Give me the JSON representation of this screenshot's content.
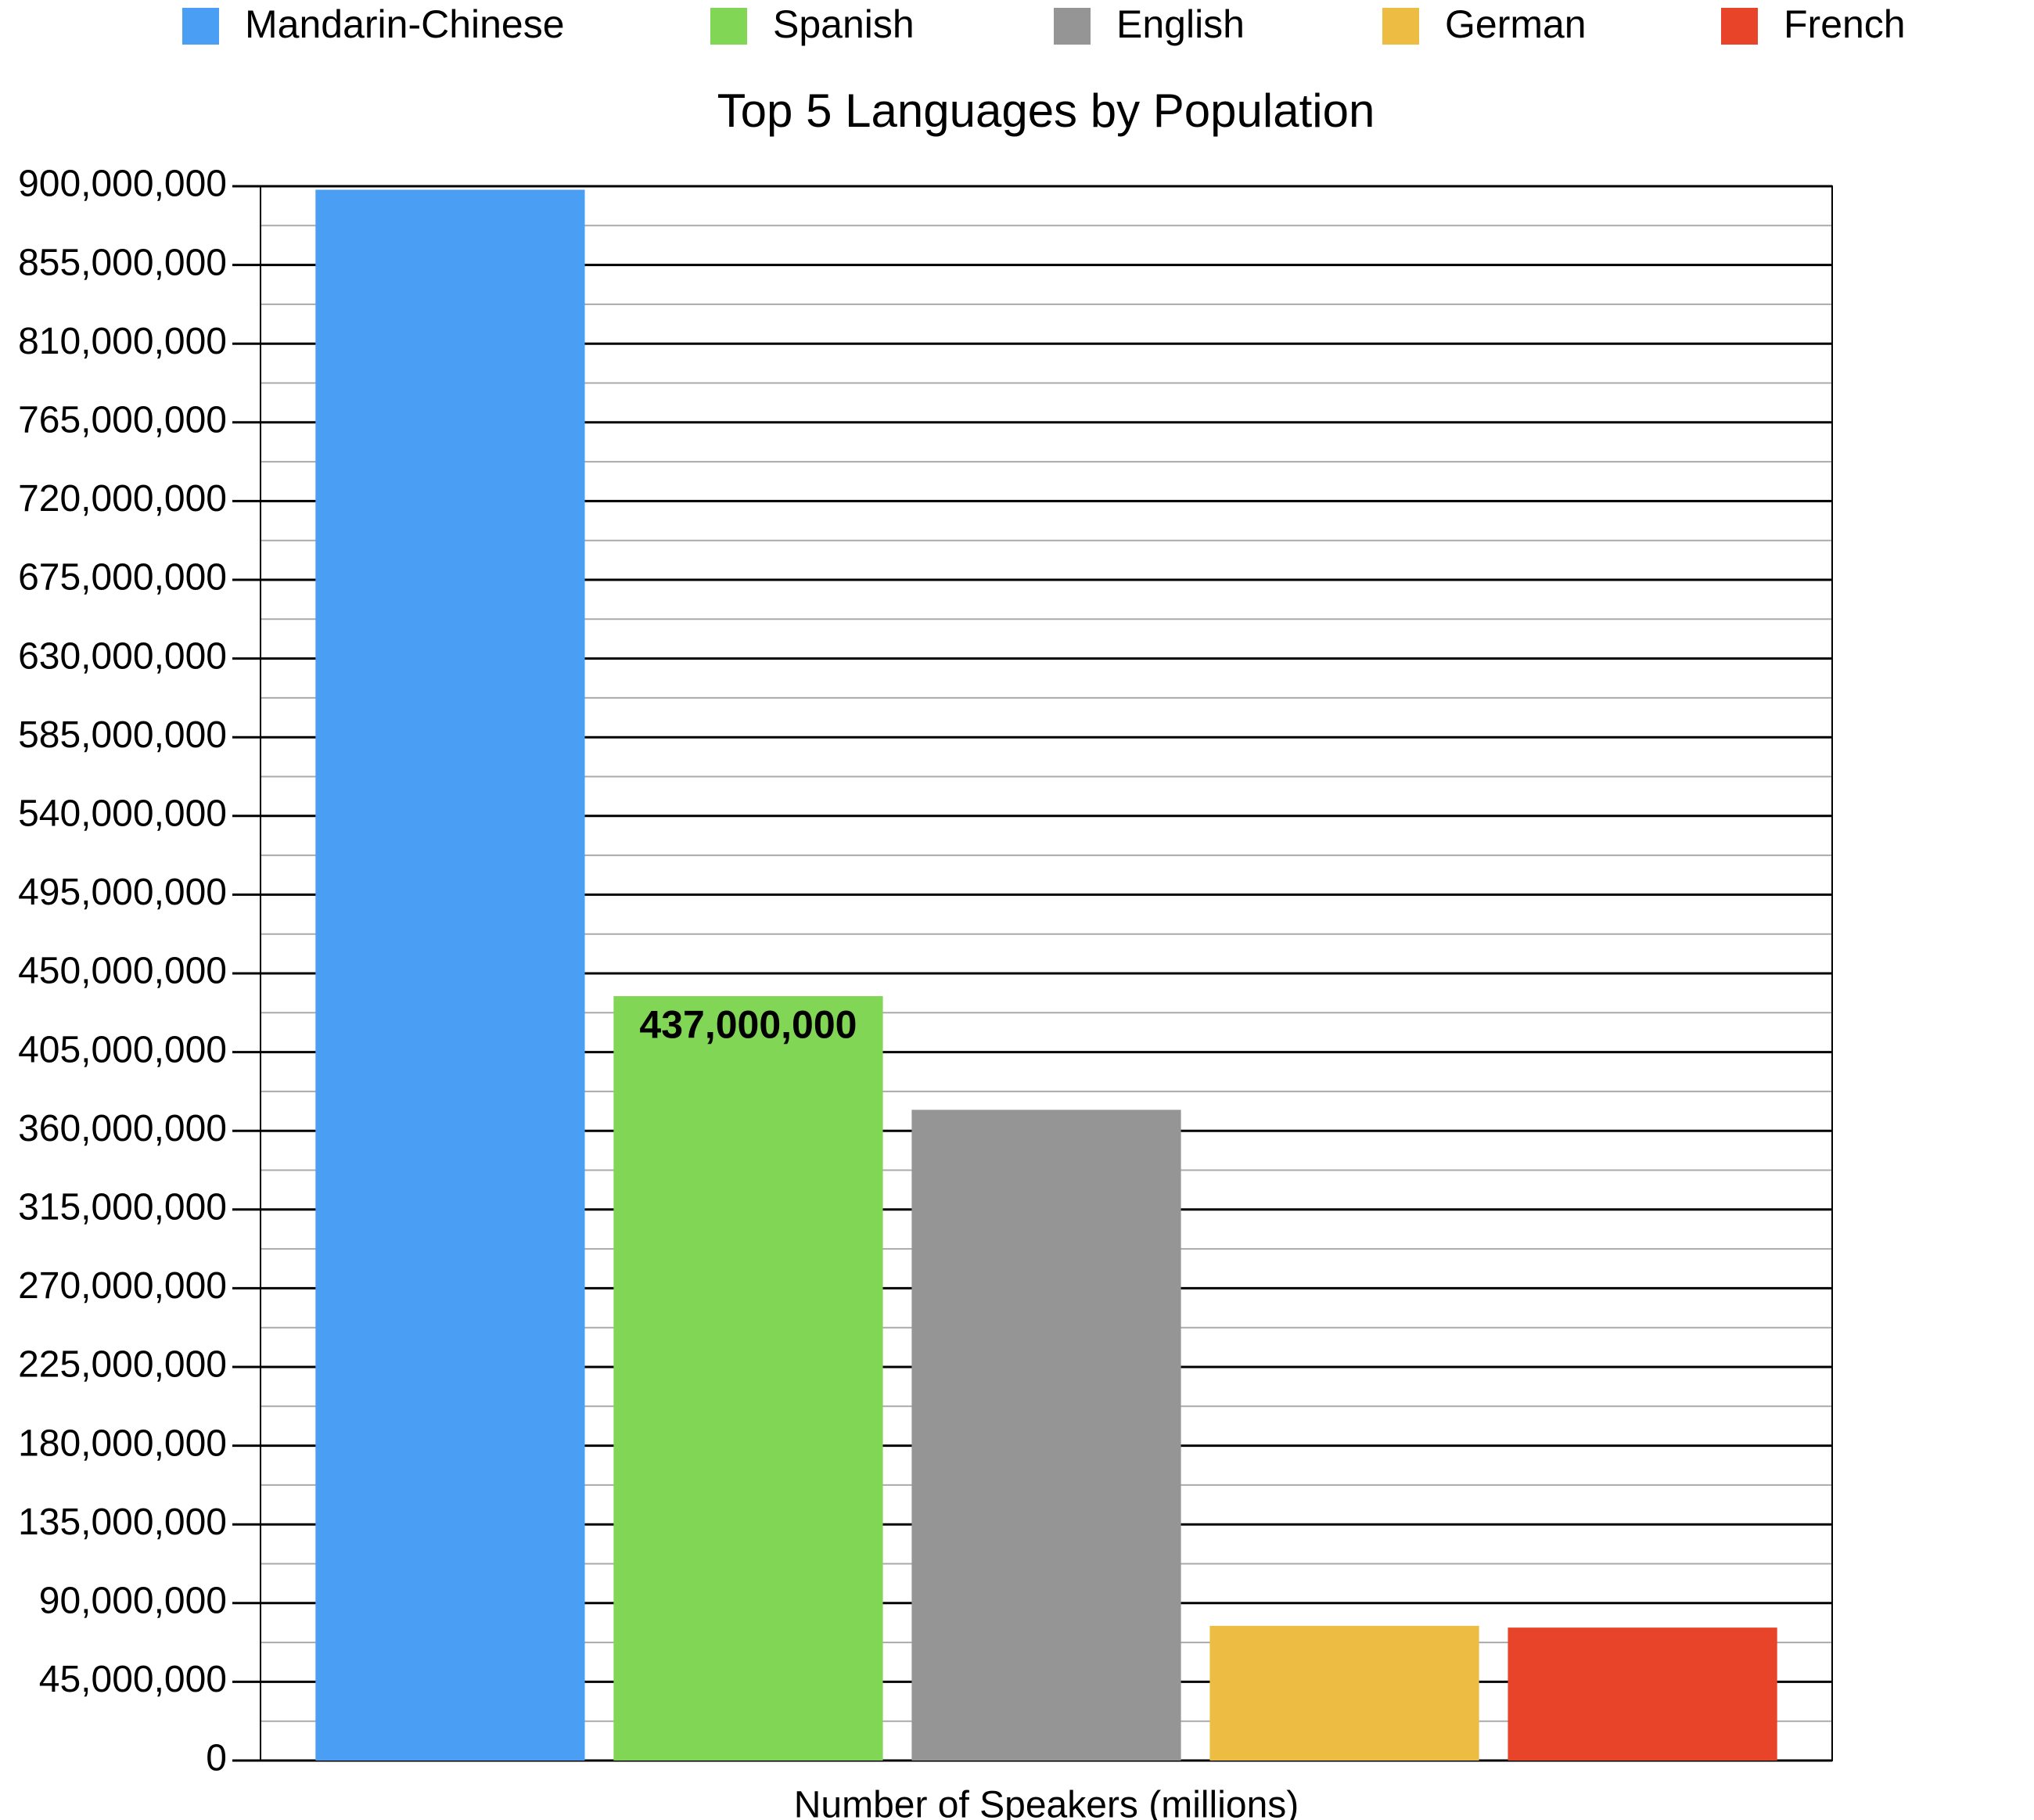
{
  "chart_data": {
    "type": "bar",
    "title": "Top 5 Languages by Population",
    "categories": [
      "Number of Speakers (millions)"
    ],
    "series": [
      {
        "name": "Mandarin-Chinese",
        "color": "#4a9ff5",
        "values": [
          898000000
        ]
      },
      {
        "name": "Spanish",
        "color": "#82d655",
        "values": [
          437000000
        ],
        "value_labels": [
          "437,000,000"
        ]
      },
      {
        "name": "English",
        "color": "#959595",
        "values": [
          372000000
        ]
      },
      {
        "name": "German",
        "color": "#ecbd42",
        "values": [
          77000000
        ]
      },
      {
        "name": "French",
        "color": "#e84429",
        "values": [
          76000000
        ]
      }
    ],
    "ylim": [
      0,
      900000000
    ],
    "yticks": [
      0,
      {
        "value": 45000000,
        "label": "45,000,000"
      },
      {
        "value": 90000000,
        "label": "90,000,000"
      },
      {
        "value": 135000000,
        "label": "135,000,000"
      },
      {
        "value": 180000000,
        "label": "180,000,000"
      },
      {
        "value": 225000000,
        "label": "225,000,000"
      },
      {
        "value": 270000000,
        "label": "270,000,000"
      },
      {
        "value": 315000000,
        "label": "315,000,000"
      },
      {
        "value": 360000000,
        "label": "360,000,000"
      },
      {
        "value": 405000000,
        "label": "405,000,000"
      },
      {
        "value": 450000000,
        "label": "450,000,000"
      },
      {
        "value": 495000000,
        "label": "495,000,000"
      },
      {
        "value": 540000000,
        "label": "540,000,000"
      },
      {
        "value": 585000000,
        "label": "585,000,000"
      },
      {
        "value": 630000000,
        "label": "630,000,000"
      },
      {
        "value": 675000000,
        "label": "675,000,000"
      },
      {
        "value": 720000000,
        "label": "720,000,000"
      },
      {
        "value": 765000000,
        "label": "765,000,000"
      },
      {
        "value": 810000000,
        "label": "810,000,000"
      },
      {
        "value": 855000000,
        "label": "855,000,000"
      },
      {
        "value": 900000000,
        "label": "900,000,000"
      }
    ],
    "grid": true,
    "minor_grid": true,
    "legend": "top"
  }
}
